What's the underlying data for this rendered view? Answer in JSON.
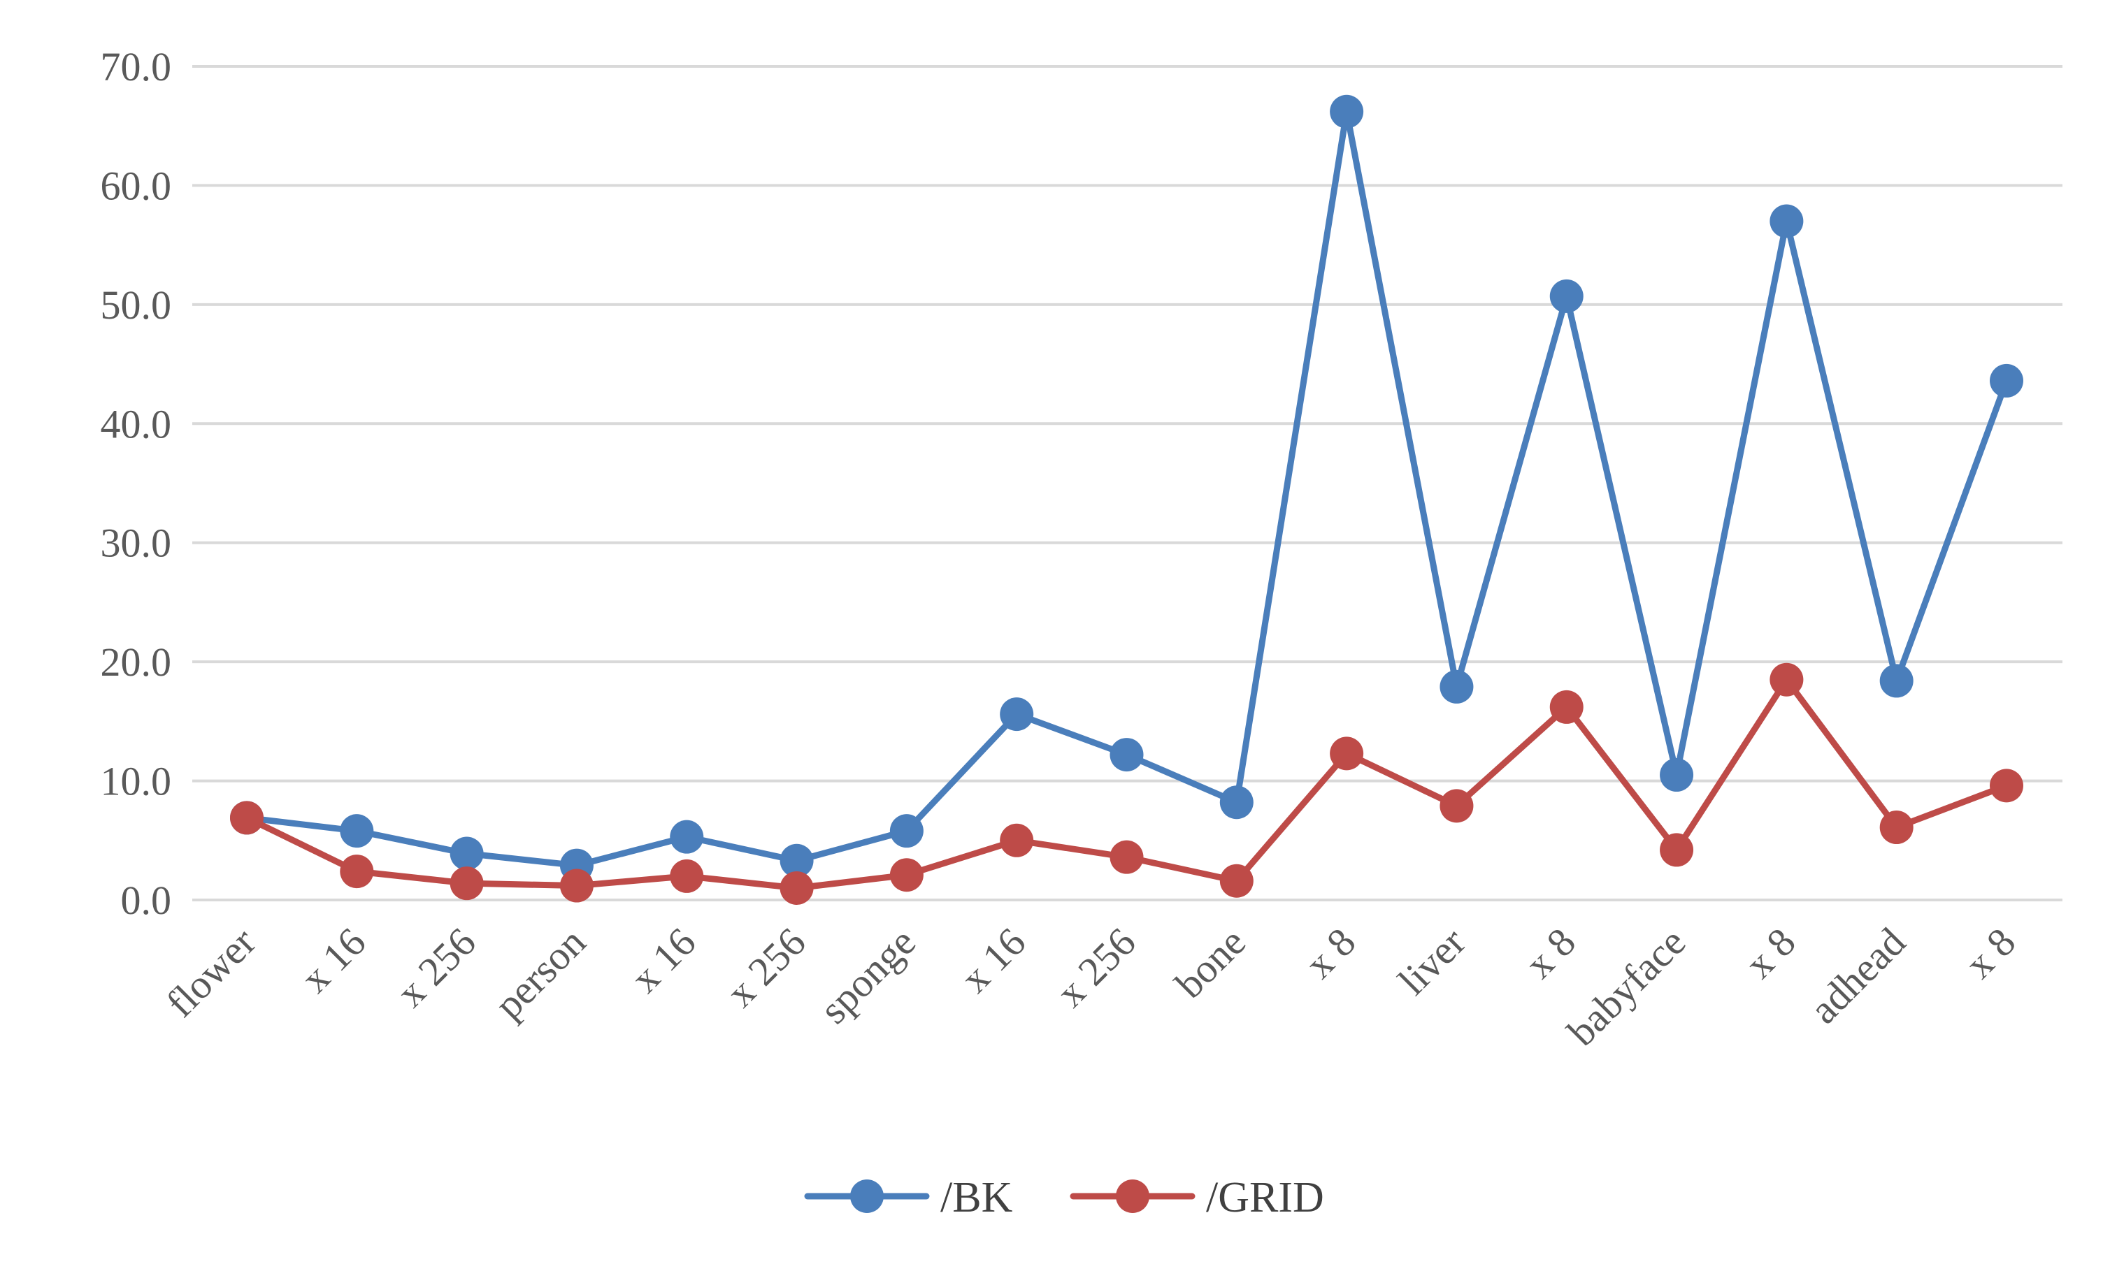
{
  "chart_data": {
    "type": "line",
    "categories": [
      "flower",
      "x 16",
      "x 256",
      "person",
      "x 16",
      "x 256",
      "sponge",
      "x 16",
      "x 256",
      "bone",
      "x 8",
      "liver",
      "x 8",
      "babyface",
      "x 8",
      "adhead",
      "x 8"
    ],
    "series": [
      {
        "name": "/BK",
        "color": "#4a7ebb",
        "values": [
          6.9,
          5.8,
          3.9,
          2.9,
          5.3,
          3.3,
          5.8,
          15.6,
          12.2,
          8.2,
          66.2,
          17.9,
          50.7,
          10.5,
          57.0,
          18.4,
          43.6
        ]
      },
      {
        "name": "/GRID",
        "color": "#be4b48",
        "values": [
          6.9,
          2.4,
          1.4,
          1.2,
          2.0,
          1.0,
          2.1,
          5.0,
          3.6,
          1.6,
          12.3,
          7.9,
          16.2,
          4.2,
          18.5,
          6.1,
          9.6
        ]
      }
    ],
    "y_ticks": [
      "0.0",
      "10.0",
      "20.0",
      "30.0",
      "40.0",
      "50.0",
      "60.0",
      "70.0"
    ],
    "ylim": [
      0,
      70
    ],
    "grid": true,
    "legend_position": "bottom"
  }
}
